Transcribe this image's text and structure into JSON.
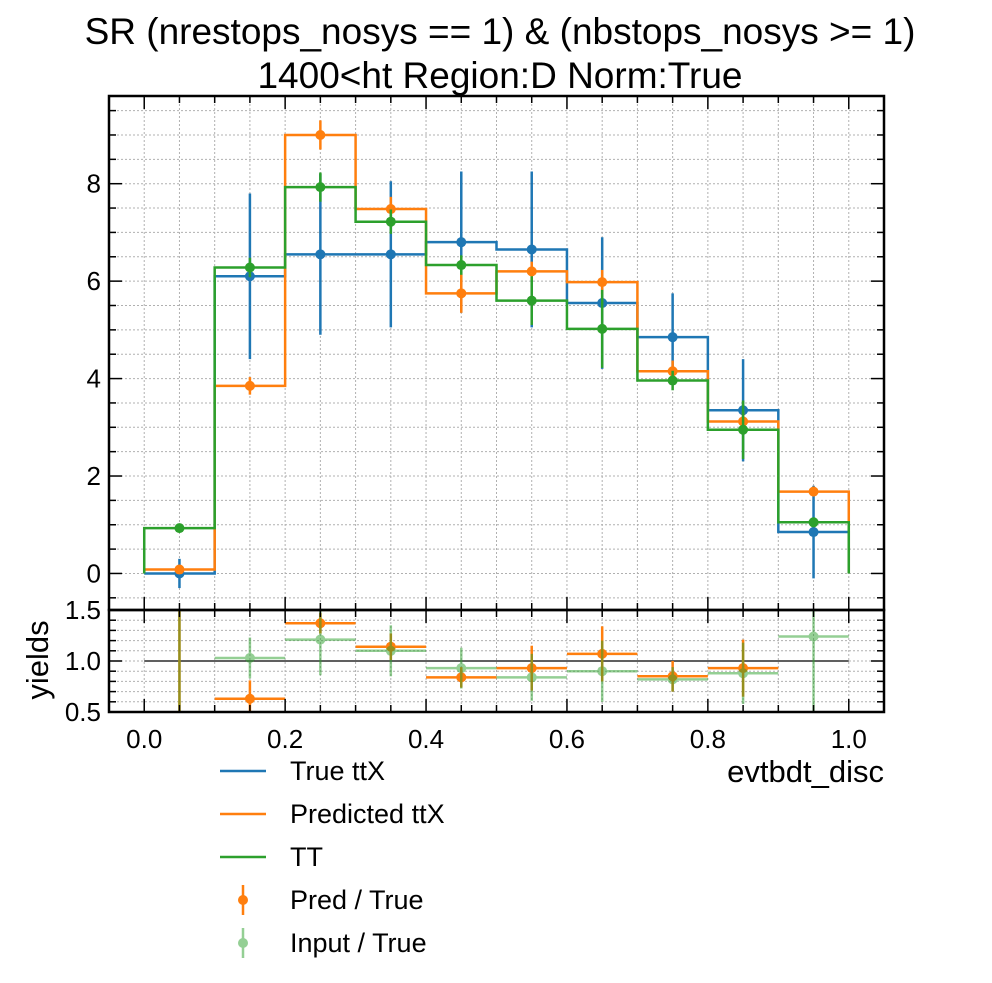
{
  "chart_data": {
    "type": "step-histogram-with-ratio",
    "title_line1": "SR (nrestops_nosys == 1) & (nbstops_nosys >= 1)",
    "title_line2": "1400<ht Region:D Norm:True",
    "xlabel": "evtbdt_disc",
    "ratio_ylabel": "yields",
    "xlim": [
      -0.05,
      1.05
    ],
    "main_ylim": [
      -0.75,
      9.8
    ],
    "ratio_ylim": [
      0.5,
      1.5
    ],
    "x_ticks": [
      "0.0",
      "0.2",
      "0.4",
      "0.6",
      "0.8",
      "1.0"
    ],
    "main_y_ticks": [
      "0",
      "2",
      "4",
      "6",
      "8"
    ],
    "ratio_y_ticks": [
      "0.5",
      "1.0",
      "1.5"
    ],
    "bin_edges": [
      0.0,
      0.1,
      0.2,
      0.3,
      0.4,
      0.5,
      0.6,
      0.7,
      0.8,
      0.9,
      1.0
    ],
    "series": [
      {
        "name": "True ttX",
        "color": "#1f77b4",
        "values": [
          0.0,
          6.1,
          6.55,
          6.55,
          6.8,
          6.65,
          5.55,
          4.85,
          3.35,
          0.85
        ],
        "errors": [
          0.3,
          1.7,
          1.65,
          1.5,
          1.45,
          1.6,
          1.35,
          0.9,
          1.05,
          0.95
        ]
      },
      {
        "name": "Predicted ttX",
        "color": "#ff7f0e",
        "values": [
          0.08,
          3.85,
          9.0,
          7.48,
          5.75,
          6.2,
          5.98,
          4.15,
          3.12,
          1.68
        ],
        "errors": [
          0.05,
          0.18,
          0.3,
          0.25,
          0.4,
          0.2,
          0.25,
          0.22,
          0.2,
          0.1
        ]
      },
      {
        "name": "TT",
        "color": "#2ca02c",
        "values": [
          0.93,
          6.28,
          7.93,
          7.22,
          6.33,
          5.6,
          5.02,
          3.96,
          2.95,
          1.05
        ],
        "errors": [
          0.05,
          0.2,
          0.3,
          0.25,
          0.2,
          0.5,
          0.8,
          0.2,
          0.6,
          0.1
        ]
      }
    ],
    "ratio_series": [
      {
        "name": "Pred / True",
        "color": "#ff7f0e",
        "values": [
          null,
          0.63,
          1.37,
          1.14,
          0.84,
          0.93,
          1.07,
          0.85,
          0.93,
          null
        ],
        "errors": [
          null,
          0.18,
          0.1,
          0.13,
          0.1,
          0.22,
          0.27,
          0.15,
          0.28,
          null
        ],
        "full_range_bins": [
          0
        ]
      },
      {
        "name": "Input / True",
        "color": "#2ca02c",
        "values": [
          null,
          1.03,
          1.21,
          1.1,
          0.93,
          0.84,
          0.9,
          0.82,
          0.88,
          1.24
        ],
        "errors": [
          null,
          0.2,
          0.35,
          0.25,
          0.2,
          0.23,
          0.3,
          0.12,
          0.3,
          1.0
        ],
        "full_range_bins": [
          0
        ]
      }
    ],
    "reference_line": 1.0,
    "legend": [
      "True ttX",
      "Predicted ttX",
      "TT",
      "Pred / True",
      "Input / True"
    ],
    "legend_placement": "below-chart",
    "grid": true
  }
}
